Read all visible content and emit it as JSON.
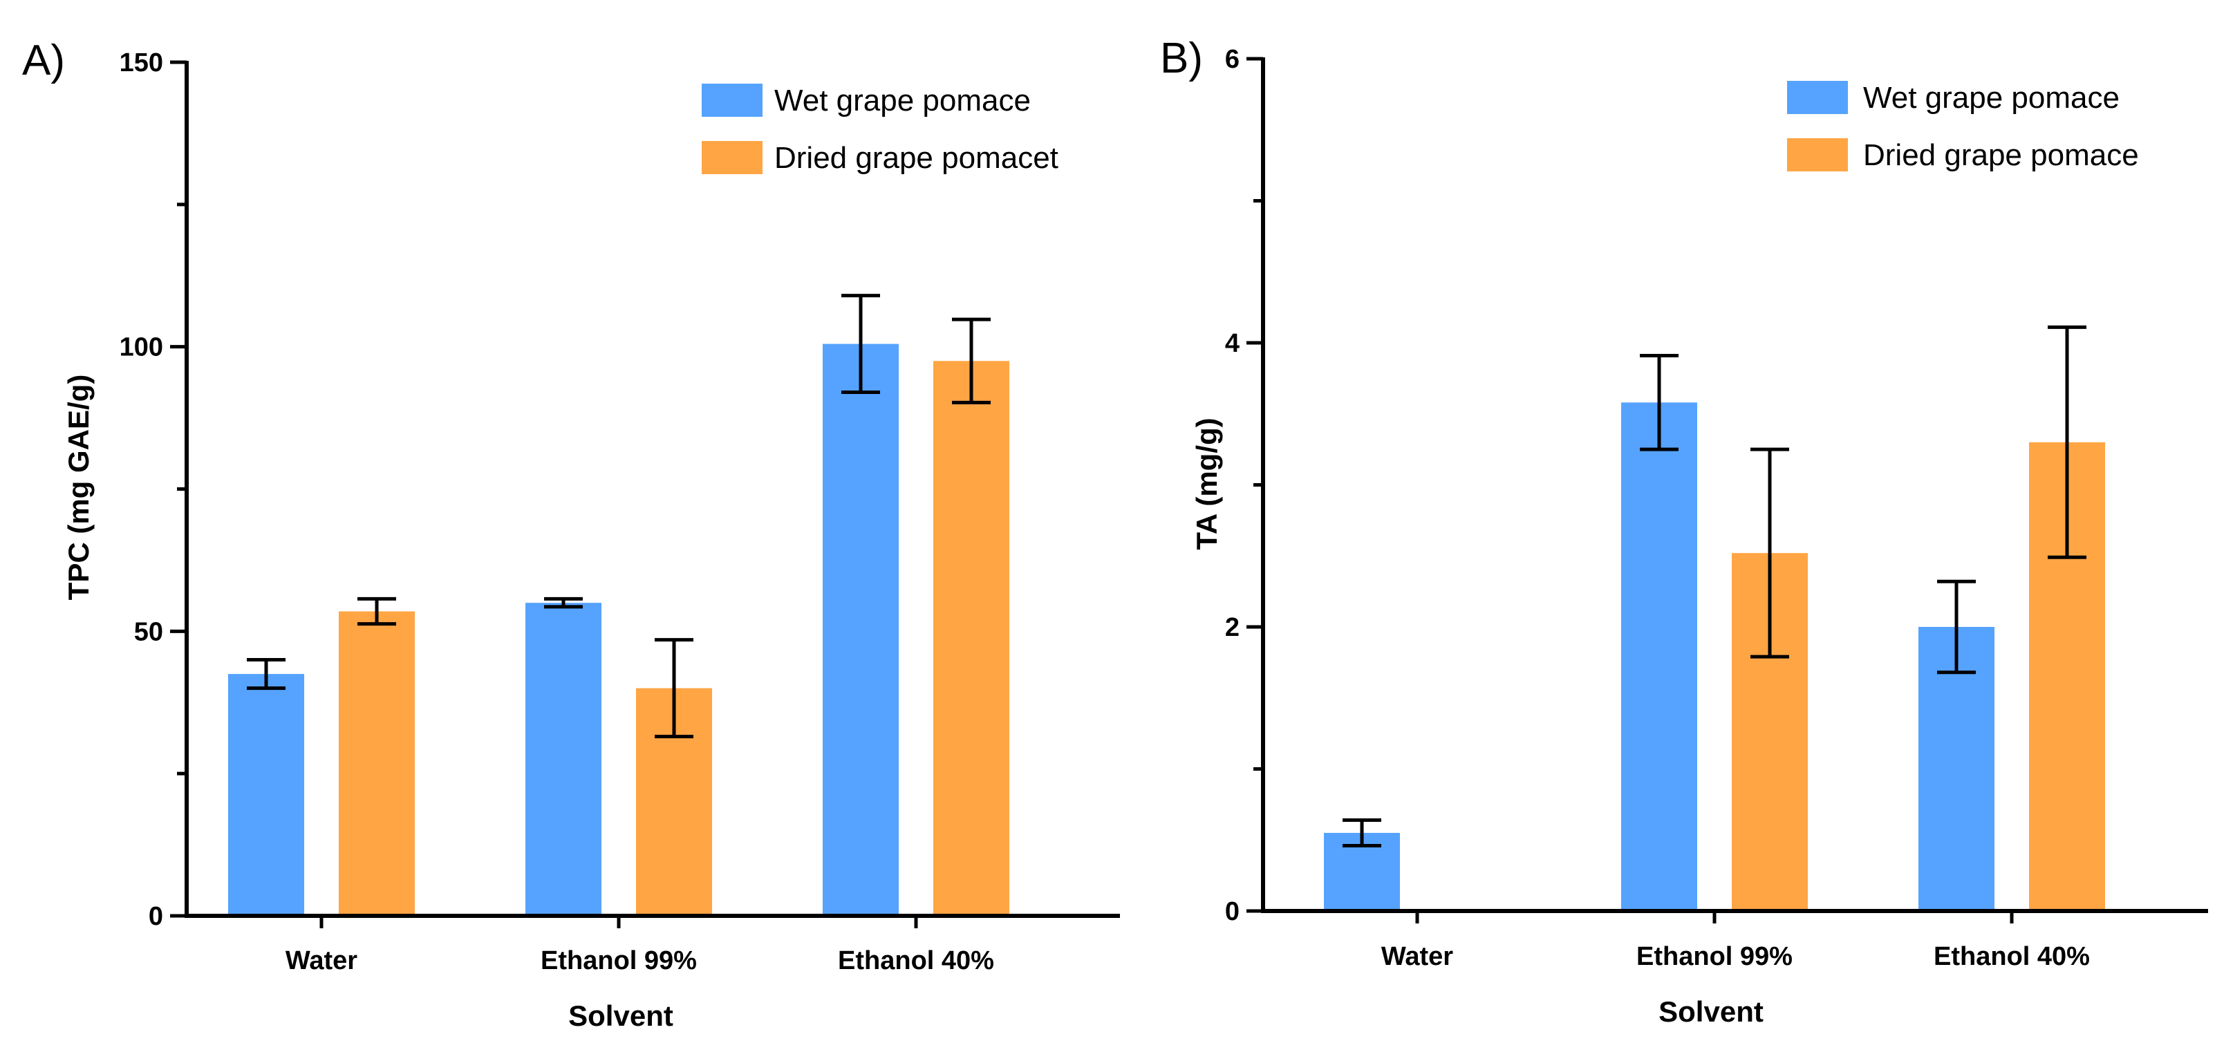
{
  "chart_data": [
    {
      "panel_label": "A)",
      "type": "bar",
      "title": "",
      "xlabel": "Solvent",
      "ylabel": "TPC  (mg GAE/g)",
      "ylim": [
        0,
        150
      ],
      "yticks": [
        "0",
        "50",
        "100",
        "150"
      ],
      "categories": [
        "Water",
        "Ethanol 99%",
        "Ethanol 40%"
      ],
      "legend_position": "top-right",
      "grid": false,
      "series": [
        {
          "name": "Wet grape pomace",
          "color": "#55A3FF",
          "values": [
            42.5,
            55.0,
            100.5
          ],
          "errors": [
            2.5,
            0.7,
            8.5
          ]
        },
        {
          "name": "Dried grape pomacet",
          "color": "#FFA544",
          "values": [
            53.5,
            40.0,
            97.5
          ],
          "errors": [
            2.2,
            8.5,
            7.3
          ]
        }
      ]
    },
    {
      "panel_label": "B)",
      "type": "bar",
      "title": "",
      "xlabel": "Solvent",
      "ylabel": "TA (mg/g)",
      "ylim": [
        0,
        6
      ],
      "yticks": [
        "0",
        "2",
        "4",
        "6"
      ],
      "categories": [
        "Water",
        "Ethanol 99%",
        "Ethanol 40%"
      ],
      "legend_position": "top-right",
      "grid": false,
      "series": [
        {
          "name": "Wet grape pomace",
          "color": "#55A3FF",
          "values": [
            0.55,
            3.58,
            2.0
          ],
          "errors": [
            0.09,
            0.33,
            0.32
          ]
        },
        {
          "name": "Dried grape pomace",
          "color": "#FFA544",
          "values": [
            0,
            2.52,
            3.3
          ],
          "errors": [
            0,
            0.73,
            0.81
          ]
        }
      ]
    }
  ]
}
